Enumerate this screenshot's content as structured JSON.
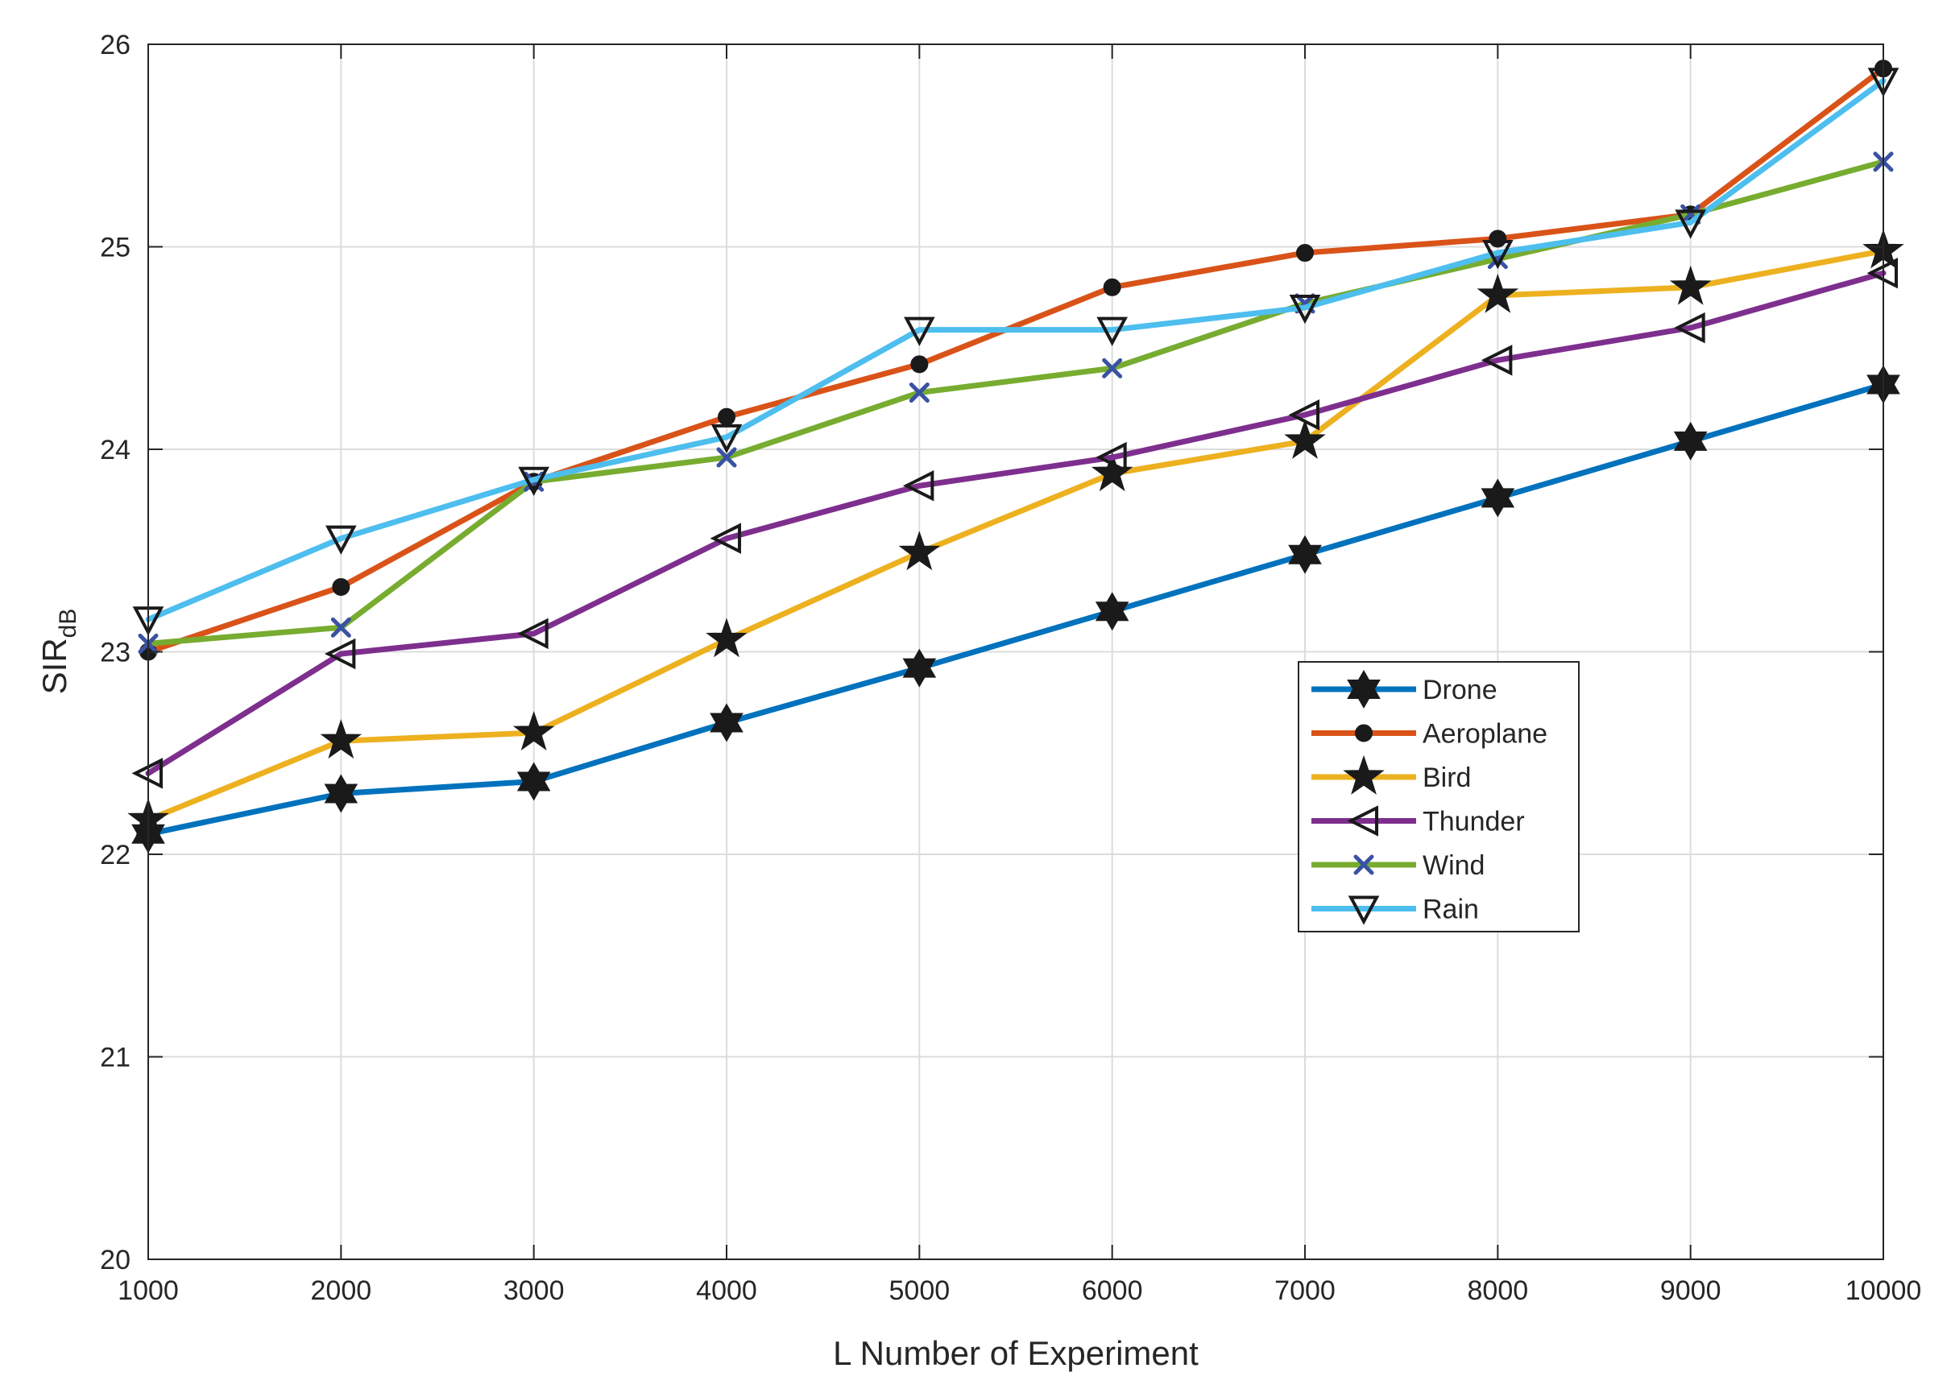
{
  "chart_data": {
    "type": "line",
    "title": "",
    "xlabel": "L Number of Experiment",
    "ylabel": "SIR",
    "ylabel_subscript": "dB",
    "xlim": [
      1000,
      10000
    ],
    "ylim": [
      20,
      26
    ],
    "grid": true,
    "legend_position": "center-right",
    "x": [
      1000,
      2000,
      3000,
      4000,
      5000,
      6000,
      7000,
      8000,
      9000,
      10000
    ],
    "xticks": [
      "1000",
      "2000",
      "3000",
      "4000",
      "5000",
      "6000",
      "7000",
      "8000",
      "9000",
      "10000"
    ],
    "yticks": [
      "20",
      "21",
      "22",
      "23",
      "24",
      "25",
      "26"
    ],
    "series": [
      {
        "name": "Drone",
        "color": "#0072BD",
        "marker": "hexagram",
        "values": [
          22.1,
          22.3,
          22.36,
          22.65,
          22.92,
          23.2,
          23.48,
          23.76,
          24.04,
          24.32
        ]
      },
      {
        "name": "Aeroplane",
        "color": "#D95319",
        "marker": "circle",
        "values": [
          23.0,
          23.32,
          23.84,
          24.16,
          24.42,
          24.8,
          24.97,
          25.04,
          25.16,
          25.88
        ]
      },
      {
        "name": "Bird",
        "color": "#EDB120",
        "marker": "pentagram",
        "values": [
          22.17,
          22.56,
          22.6,
          23.06,
          23.49,
          23.88,
          24.04,
          24.76,
          24.8,
          24.98
        ]
      },
      {
        "name": "Thunder",
        "color": "#7E2F8E",
        "marker": "triangle-left",
        "values": [
          22.4,
          22.99,
          23.09,
          23.56,
          23.82,
          23.96,
          24.17,
          24.44,
          24.6,
          24.87
        ]
      },
      {
        "name": "Wind",
        "color": "#77AC30",
        "marker": "x",
        "values": [
          23.04,
          23.12,
          23.84,
          23.96,
          24.28,
          24.4,
          24.72,
          24.94,
          25.16,
          25.42
        ]
      },
      {
        "name": "Rain",
        "color": "#4DBEEE",
        "marker": "triangle-down",
        "values": [
          23.16,
          23.56,
          23.85,
          24.06,
          24.59,
          24.59,
          24.7,
          24.97,
          25.12,
          25.82
        ]
      }
    ]
  }
}
